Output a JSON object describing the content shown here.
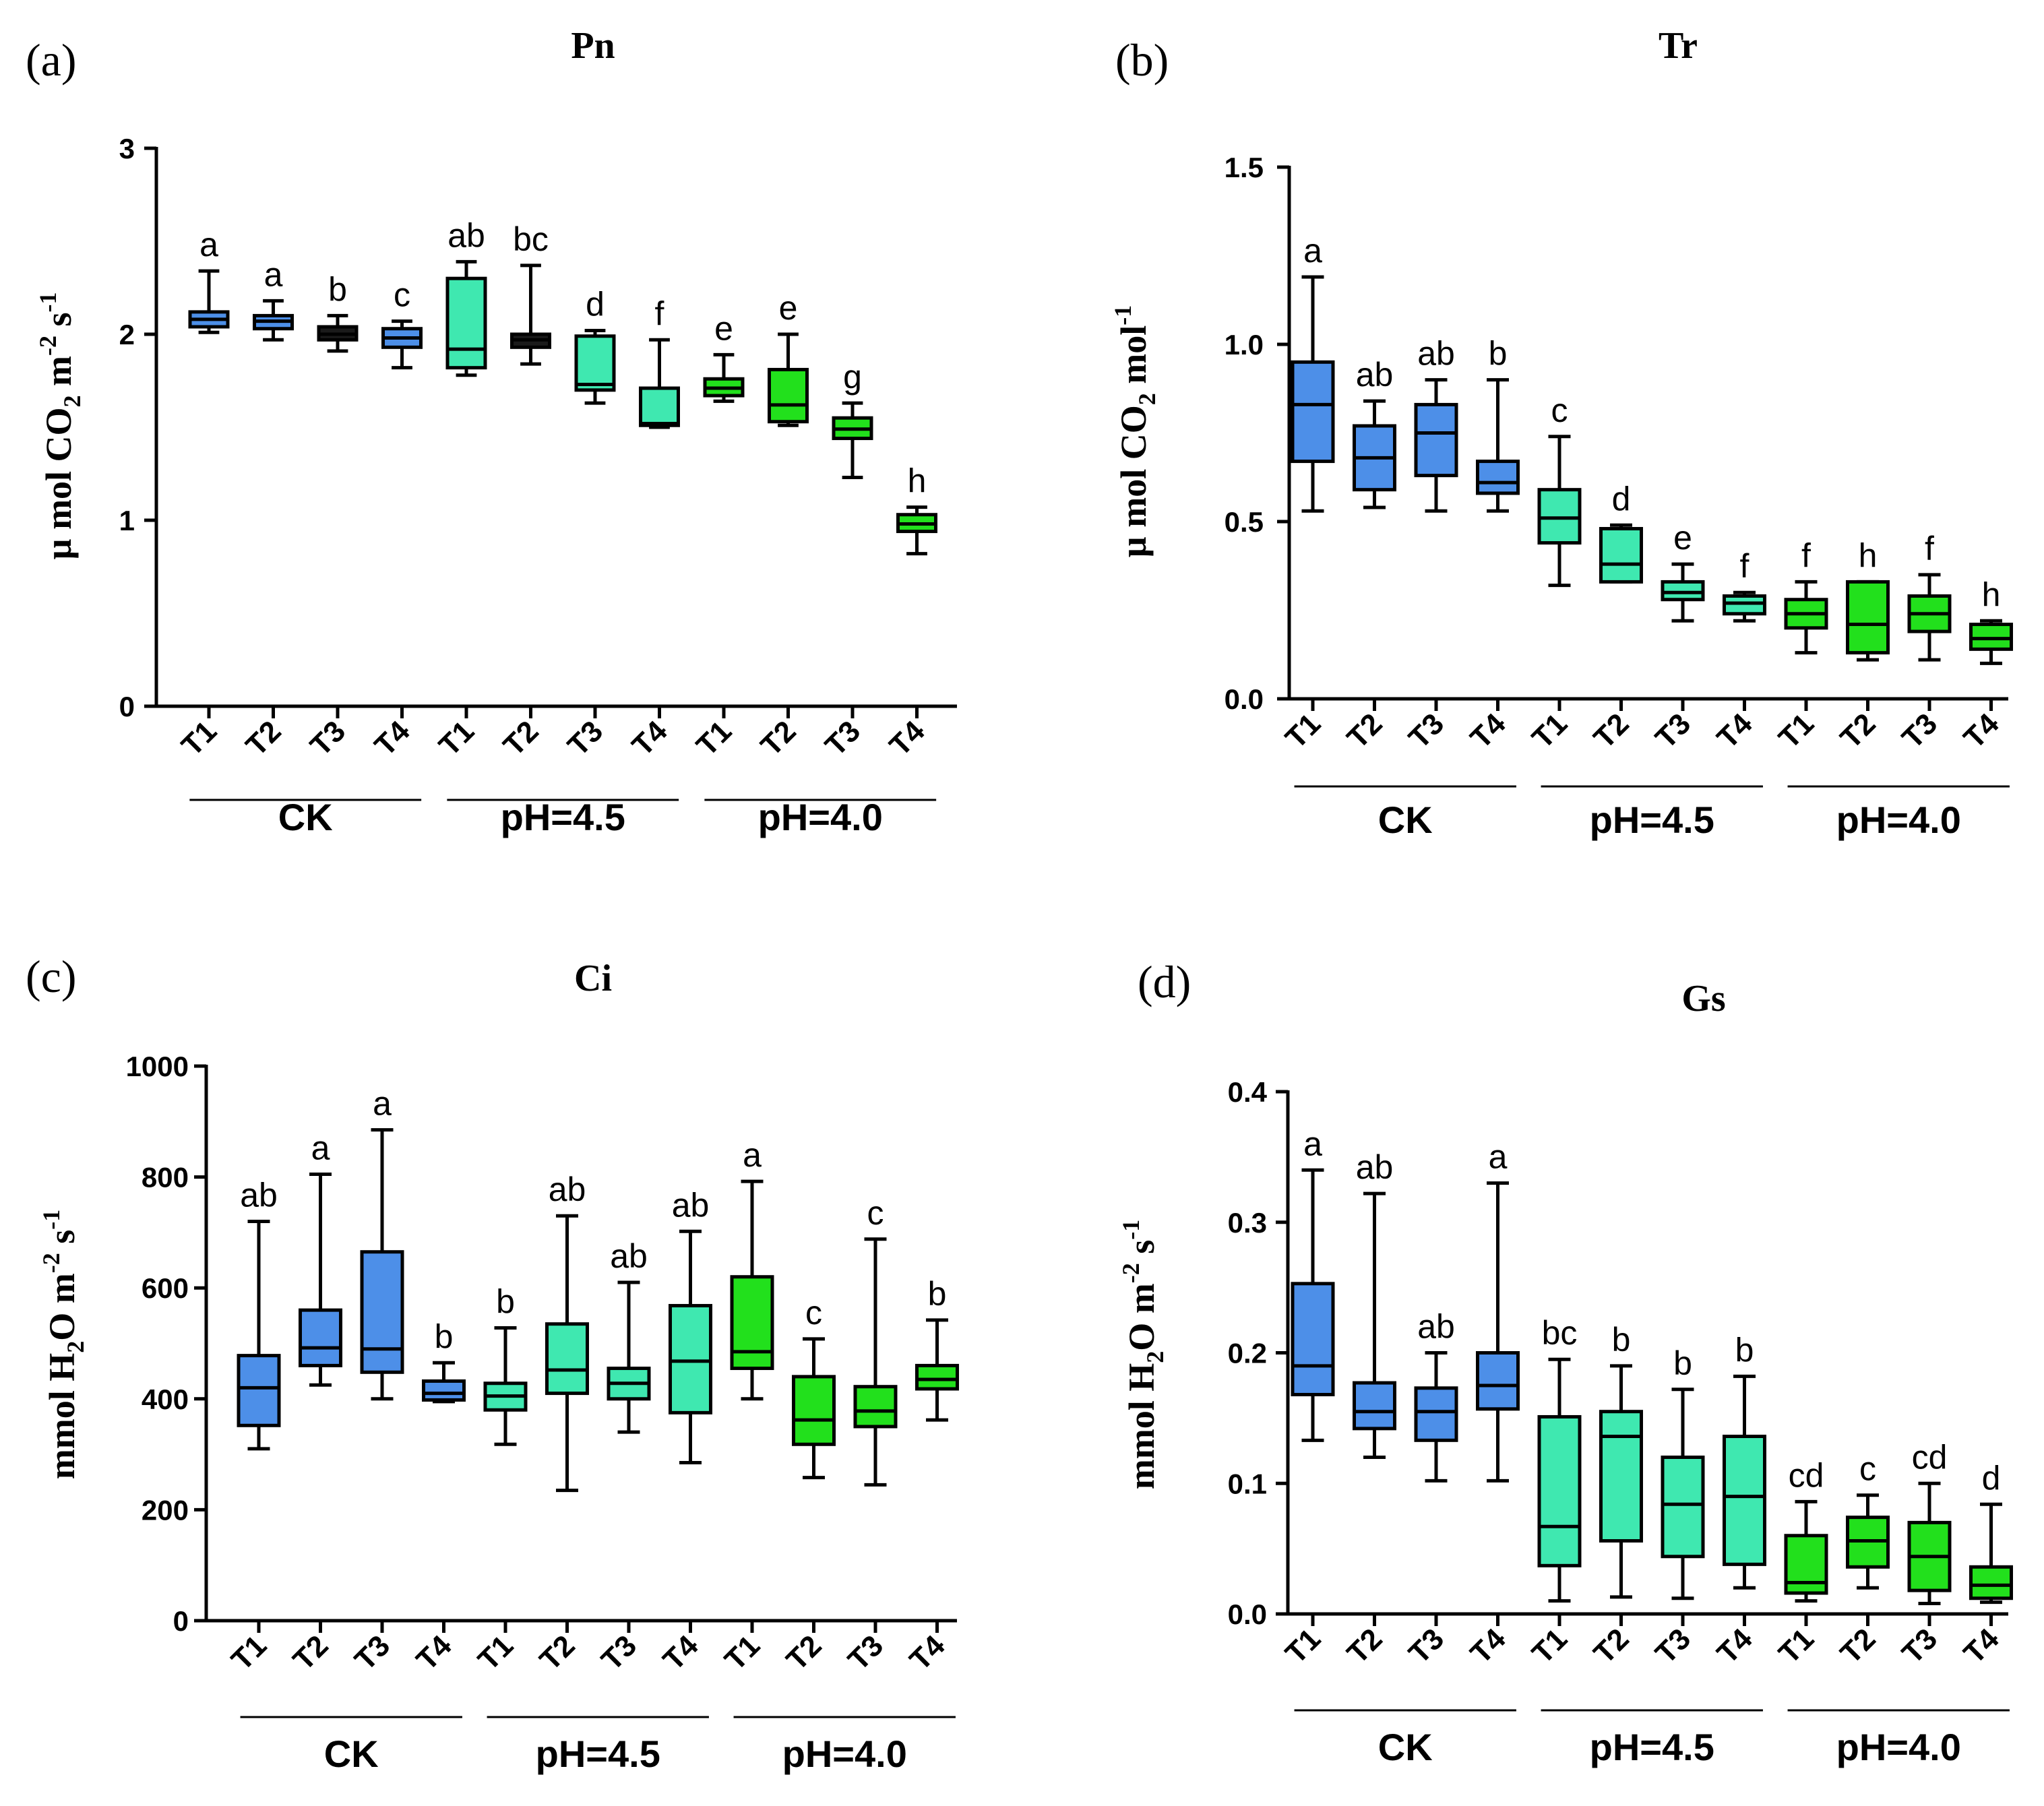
{
  "colors": {
    "CK": "#4d8fe8",
    "pH=4.5": "#3fe8b0",
    "pH=4.0": "#22e01c",
    "Pn_CK_T3": "#1a1a1a",
    "Pn_pH=4.5_T2": "#1a1a1a"
  },
  "chart_data": [
    {
      "type": "box",
      "panel": "(a)",
      "title": "Pn",
      "ylabel": "µ mol CO2 m-2 s-1",
      "ylabel_parts": {
        "main": "µ mol CO",
        "sub": "2",
        "tail1": " m",
        "sup1": "-2",
        "tail2": " s",
        "sup2": "-1"
      },
      "ylim": [
        0,
        3
      ],
      "yticks": [
        "0",
        "1",
        "2",
        "3"
      ],
      "groups": [
        "CK",
        "pH=4.5",
        "pH=4.0"
      ],
      "treatments": [
        "T1",
        "T2",
        "T3",
        "T4"
      ],
      "boxes": [
        {
          "group": "CK",
          "treatment": "T1",
          "min": 2.01,
          "q1": 2.04,
          "median": 2.08,
          "q3": 2.12,
          "max": 2.34,
          "label": "a"
        },
        {
          "group": "CK",
          "treatment": "T2",
          "min": 1.97,
          "q1": 2.03,
          "median": 2.07,
          "q3": 2.1,
          "max": 2.18,
          "label": "a"
        },
        {
          "group": "CK",
          "treatment": "T3",
          "min": 1.91,
          "q1": 1.97,
          "median": 2.0,
          "q3": 2.04,
          "max": 2.1,
          "label": "b"
        },
        {
          "group": "CK",
          "treatment": "T4",
          "min": 1.82,
          "q1": 1.93,
          "median": 1.98,
          "q3": 2.03,
          "max": 2.07,
          "label": "c"
        },
        {
          "group": "pH=4.5",
          "treatment": "T1",
          "min": 1.78,
          "q1": 1.82,
          "median": 1.92,
          "q3": 2.3,
          "max": 2.39,
          "label": "ab"
        },
        {
          "group": "pH=4.5",
          "treatment": "T2",
          "min": 1.84,
          "q1": 1.93,
          "median": 1.97,
          "q3": 2.0,
          "max": 2.37,
          "label": "bc"
        },
        {
          "group": "pH=4.5",
          "treatment": "T3",
          "min": 1.63,
          "q1": 1.7,
          "median": 1.73,
          "q3": 1.99,
          "max": 2.02,
          "label": "d"
        },
        {
          "group": "pH=4.5",
          "treatment": "T4",
          "min": 1.5,
          "q1": 1.51,
          "median": 1.52,
          "q3": 1.71,
          "max": 1.97,
          "label": "f"
        },
        {
          "group": "pH=4.0",
          "treatment": "T1",
          "min": 1.64,
          "q1": 1.67,
          "median": 1.71,
          "q3": 1.76,
          "max": 1.89,
          "label": "e"
        },
        {
          "group": "pH=4.0",
          "treatment": "T2",
          "min": 1.51,
          "q1": 1.53,
          "median": 1.62,
          "q3": 1.81,
          "max": 2.0,
          "label": "e"
        },
        {
          "group": "pH=4.0",
          "treatment": "T3",
          "min": 1.23,
          "q1": 1.44,
          "median": 1.49,
          "q3": 1.55,
          "max": 1.63,
          "label": "g"
        },
        {
          "group": "pH=4.0",
          "treatment": "T4",
          "min": 0.82,
          "q1": 0.94,
          "median": 0.98,
          "q3": 1.03,
          "max": 1.07,
          "label": "h"
        }
      ]
    },
    {
      "type": "box",
      "panel": "(b)",
      "title": "Tr",
      "ylabel": "µ mol CO2 mol-1",
      "ylabel_parts": {
        "main": "µ mol CO",
        "sub": "2",
        "tail1": " mol",
        "sup1": "-1"
      },
      "ylim": [
        0,
        1.5
      ],
      "yticks": [
        "0.0",
        "0.5",
        "1.0",
        "1.5"
      ],
      "groups": [
        "CK",
        "pH=4.5",
        "pH=4.0"
      ],
      "treatments": [
        "T1",
        "T2",
        "T3",
        "T4"
      ],
      "boxes": [
        {
          "group": "CK",
          "treatment": "T1",
          "min": 0.53,
          "q1": 0.67,
          "median": 0.83,
          "q3": 0.95,
          "max": 1.19,
          "label": "a"
        },
        {
          "group": "CK",
          "treatment": "T2",
          "min": 0.54,
          "q1": 0.59,
          "median": 0.68,
          "q3": 0.77,
          "max": 0.84,
          "label": "ab"
        },
        {
          "group": "CK",
          "treatment": "T3",
          "min": 0.53,
          "q1": 0.63,
          "median": 0.75,
          "q3": 0.83,
          "max": 0.9,
          "label": "ab"
        },
        {
          "group": "CK",
          "treatment": "T4",
          "min": 0.53,
          "q1": 0.58,
          "median": 0.61,
          "q3": 0.67,
          "max": 0.9,
          "label": "b"
        },
        {
          "group": "pH=4.5",
          "treatment": "T1",
          "min": 0.32,
          "q1": 0.44,
          "median": 0.51,
          "q3": 0.59,
          "max": 0.74,
          "label": "c"
        },
        {
          "group": "pH=4.5",
          "treatment": "T2",
          "min": 0.33,
          "q1": 0.33,
          "median": 0.38,
          "q3": 0.48,
          "max": 0.49,
          "label": "d"
        },
        {
          "group": "pH=4.5",
          "treatment": "T3",
          "min": 0.22,
          "q1": 0.28,
          "median": 0.3,
          "q3": 0.33,
          "max": 0.38,
          "label": "e"
        },
        {
          "group": "pH=4.5",
          "treatment": "T4",
          "min": 0.22,
          "q1": 0.24,
          "median": 0.27,
          "q3": 0.29,
          "max": 0.3,
          "label": "f"
        },
        {
          "group": "pH=4.0",
          "treatment": "T1",
          "min": 0.13,
          "q1": 0.2,
          "median": 0.24,
          "q3": 0.28,
          "max": 0.33,
          "label": "f"
        },
        {
          "group": "pH=4.0",
          "treatment": "T2",
          "min": 0.11,
          "q1": 0.13,
          "median": 0.21,
          "q3": 0.33,
          "max": 0.33,
          "label": "h"
        },
        {
          "group": "pH=4.0",
          "treatment": "T3",
          "min": 0.11,
          "q1": 0.19,
          "median": 0.24,
          "q3": 0.29,
          "max": 0.35,
          "label": "f"
        },
        {
          "group": "pH=4.0",
          "treatment": "T4",
          "min": 0.1,
          "q1": 0.14,
          "median": 0.17,
          "q3": 0.21,
          "max": 0.22,
          "label": "h"
        }
      ]
    },
    {
      "type": "box",
      "panel": "(c)",
      "title": "Ci",
      "ylabel": "mmol H2O m-2 s-1",
      "ylabel_parts": {
        "main": "mmol H",
        "sub": "2",
        "tail1": "O m",
        "sup1": "-2",
        "tail2": " s",
        "sup2": "-1"
      },
      "ylim": [
        0,
        1000
      ],
      "yticks": [
        "0",
        "200",
        "400",
        "600",
        "800",
        "1000"
      ],
      "groups": [
        "CK",
        "pH=4.5",
        "pH=4.0"
      ],
      "treatments": [
        "T1",
        "T2",
        "T3",
        "T4"
      ],
      "boxes": [
        {
          "group": "CK",
          "treatment": "T1",
          "min": 310,
          "q1": 352,
          "median": 420,
          "q3": 478,
          "max": 720,
          "label": "ab"
        },
        {
          "group": "CK",
          "treatment": "T2",
          "min": 425,
          "q1": 460,
          "median": 492,
          "q3": 560,
          "max": 805,
          "label": "a"
        },
        {
          "group": "CK",
          "treatment": "T3",
          "min": 400,
          "q1": 448,
          "median": 490,
          "q3": 665,
          "max": 885,
          "label": "a"
        },
        {
          "group": "CK",
          "treatment": "T4",
          "min": 395,
          "q1": 398,
          "median": 410,
          "q3": 432,
          "max": 465,
          "label": "b"
        },
        {
          "group": "pH=4.5",
          "treatment": "T1",
          "min": 318,
          "q1": 380,
          "median": 405,
          "q3": 428,
          "max": 528,
          "label": "b"
        },
        {
          "group": "pH=4.5",
          "treatment": "T2",
          "min": 235,
          "q1": 410,
          "median": 452,
          "q3": 535,
          "max": 730,
          "label": "ab"
        },
        {
          "group": "pH=4.5",
          "treatment": "T3",
          "min": 340,
          "q1": 400,
          "median": 428,
          "q3": 455,
          "max": 610,
          "label": "ab"
        },
        {
          "group": "pH=4.5",
          "treatment": "T4",
          "min": 285,
          "q1": 375,
          "median": 468,
          "q3": 568,
          "max": 702,
          "label": "ab"
        },
        {
          "group": "pH=4.0",
          "treatment": "T1",
          "min": 400,
          "q1": 455,
          "median": 485,
          "q3": 620,
          "max": 792,
          "label": "a"
        },
        {
          "group": "pH=4.0",
          "treatment": "T2",
          "min": 258,
          "q1": 318,
          "median": 362,
          "q3": 440,
          "max": 508,
          "label": "c"
        },
        {
          "group": "pH=4.0",
          "treatment": "T3",
          "min": 245,
          "q1": 350,
          "median": 378,
          "q3": 422,
          "max": 688,
          "label": "c"
        },
        {
          "group": "pH=4.0",
          "treatment": "T4",
          "min": 362,
          "q1": 418,
          "median": 435,
          "q3": 460,
          "max": 542,
          "label": "b"
        }
      ]
    },
    {
      "type": "box",
      "panel": "(d)",
      "title": "Gs",
      "ylabel": "mmol H2O m-2 s-1",
      "ylabel_parts": {
        "main": "mmol H",
        "sub": "2",
        "tail1": "O m",
        "sup1": "-2",
        "tail2": " s",
        "sup2": "-1"
      },
      "ylim": [
        0,
        0.4
      ],
      "yticks": [
        "0.0",
        "0.1",
        "0.2",
        "0.3",
        "0.4"
      ],
      "groups": [
        "CK",
        "pH=4.5",
        "pH=4.0"
      ],
      "treatments": [
        "T1",
        "T2",
        "T3",
        "T4"
      ],
      "boxes": [
        {
          "group": "CK",
          "treatment": "T1",
          "min": 0.133,
          "q1": 0.168,
          "median": 0.19,
          "q3": 0.253,
          "max": 0.34,
          "label": "a"
        },
        {
          "group": "CK",
          "treatment": "T2",
          "min": 0.12,
          "q1": 0.142,
          "median": 0.155,
          "q3": 0.177,
          "max": 0.322,
          "label": "ab"
        },
        {
          "group": "CK",
          "treatment": "T3",
          "min": 0.102,
          "q1": 0.133,
          "median": 0.155,
          "q3": 0.173,
          "max": 0.2,
          "label": "ab"
        },
        {
          "group": "CK",
          "treatment": "T4",
          "min": 0.102,
          "q1": 0.157,
          "median": 0.175,
          "q3": 0.2,
          "max": 0.33,
          "label": "a"
        },
        {
          "group": "pH=4.5",
          "treatment": "T1",
          "min": 0.01,
          "q1": 0.037,
          "median": 0.067,
          "q3": 0.151,
          "max": 0.195,
          "label": "bc"
        },
        {
          "group": "pH=4.5",
          "treatment": "T2",
          "min": 0.013,
          "q1": 0.056,
          "median": 0.136,
          "q3": 0.155,
          "max": 0.19,
          "label": "b"
        },
        {
          "group": "pH=4.5",
          "treatment": "T3",
          "min": 0.012,
          "q1": 0.044,
          "median": 0.084,
          "q3": 0.12,
          "max": 0.172,
          "label": "b"
        },
        {
          "group": "pH=4.5",
          "treatment": "T4",
          "min": 0.02,
          "q1": 0.038,
          "median": 0.09,
          "q3": 0.136,
          "max": 0.182,
          "label": "b"
        },
        {
          "group": "pH=4.0",
          "treatment": "T1",
          "min": 0.01,
          "q1": 0.016,
          "median": 0.024,
          "q3": 0.06,
          "max": 0.086,
          "label": "cd"
        },
        {
          "group": "pH=4.0",
          "treatment": "T2",
          "min": 0.02,
          "q1": 0.036,
          "median": 0.056,
          "q3": 0.074,
          "max": 0.091,
          "label": "c"
        },
        {
          "group": "pH=4.0",
          "treatment": "T3",
          "min": 0.008,
          "q1": 0.018,
          "median": 0.044,
          "q3": 0.07,
          "max": 0.1,
          "label": "cd"
        },
        {
          "group": "pH=4.0",
          "treatment": "T4",
          "min": 0.009,
          "q1": 0.012,
          "median": 0.022,
          "q3": 0.036,
          "max": 0.084,
          "label": "d"
        }
      ]
    }
  ]
}
